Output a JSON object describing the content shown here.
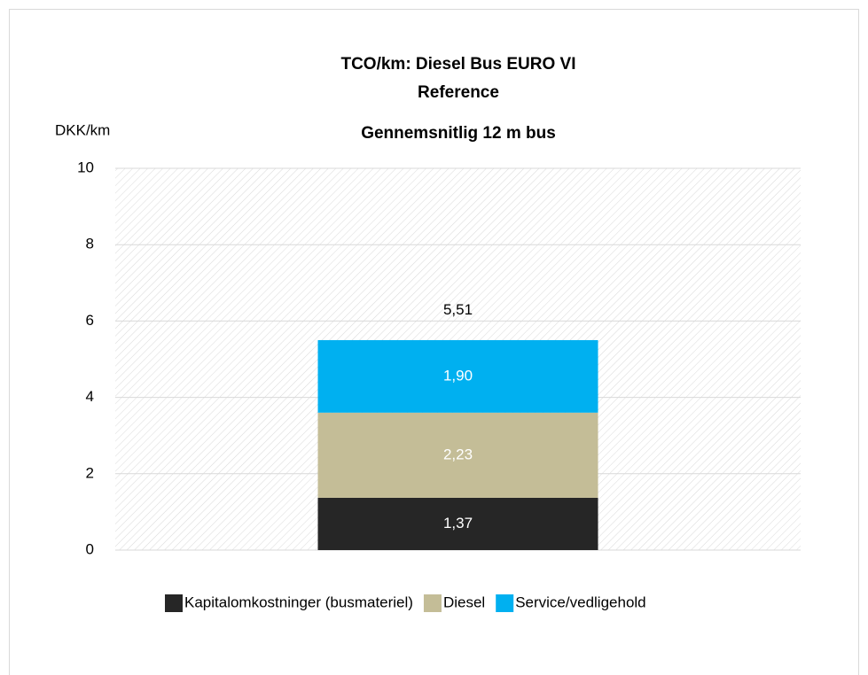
{
  "chart_data": {
    "type": "stacked_bar",
    "title": [
      "TCO/km: Diesel Bus EURO VI",
      "Reference",
      "Gennemsnitlig 12 m bus"
    ],
    "ylabel": "DKK/km",
    "categories": [
      null
    ],
    "series": [
      {
        "name": "Kapitalomkostninger (busmateriel)",
        "color": "#262626",
        "values": [
          1.37
        ],
        "value_labels": [
          "1,37"
        ]
      },
      {
        "name": "Diesel",
        "color": "#c4bd97",
        "values": [
          2.23
        ],
        "value_labels": [
          "2,23"
        ]
      },
      {
        "name": "Service/vedligehold",
        "color": "#00b0f0",
        "values": [
          1.9
        ],
        "value_labels": [
          "1,90"
        ]
      }
    ],
    "totals": [
      5.51
    ],
    "total_labels": [
      "5,51"
    ],
    "ylim": [
      0,
      10
    ],
    "yticks": [
      0,
      2,
      4,
      6,
      8,
      10
    ],
    "grid": true,
    "legend": "bottom"
  }
}
